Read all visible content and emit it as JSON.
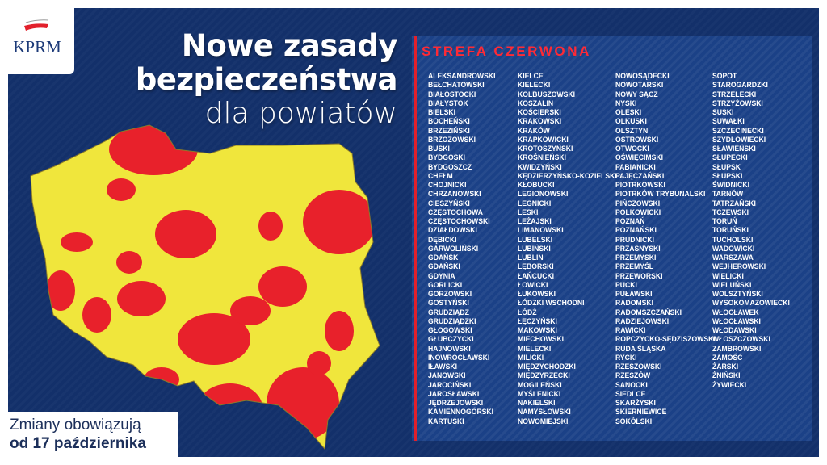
{
  "logo": {
    "text": "KPRM"
  },
  "title": {
    "line1": "Nowe zasady",
    "line2": "bezpieczeństwa",
    "line3": "dla powiatów"
  },
  "footer": {
    "line1": "Zmiany obowiązują",
    "line2": "od 17 października"
  },
  "map": {
    "colors": {
      "red_zone": "#e8212b",
      "yellow_zone": "#f0e63c",
      "border": "#8a7a2a"
    }
  },
  "list": {
    "title": "STREFA CZERWONA",
    "columns": [
      [
        "ALEKSANDROWSKI",
        "BEŁCHATOWSKI",
        "BIAŁOSTOCKI",
        "BIAŁYSTOK",
        "BIELSKI",
        "BOCHEŃSKI",
        "BRZEZIŃSKI",
        "BRZOZOWSKI",
        "BUSKI",
        "BYDGOSKI",
        "BYDGOSZCZ",
        "CHEŁM",
        "CHOJNICKI",
        "CHRZANOWSKI",
        "CIESZYŃSKI",
        "CZĘSTOCHOWA",
        "CZĘSTOCHOWSKI",
        "DZIAŁDOWSKI",
        "DĘBICKI",
        "GARWOLIŃSKI",
        "GDAŃSK",
        "GDAŃSKI",
        "GDYNIA",
        "GORLICKI",
        "GORZOWSKI",
        "GOSTYŃSKI",
        "GRUDZIĄDZ",
        "GRUDZIĄDZKI",
        "GŁOGOWSKI",
        "GŁUBCZYCKI",
        "HAJNOWSKI",
        "INOWROCŁAWSKI",
        "IŁAWSKI",
        "JANOWSKI",
        "JAROCIŃSKI",
        "JAROSŁAWSKI",
        "JĘDRZEJOWSKI",
        "KAMIENNOGÓRSKI",
        "KARTUSKI"
      ],
      [
        "KIELCE",
        "KIELECKI",
        "KOLBUSZOWSKI",
        "KOSZALIN",
        "KOŚCIERSKI",
        "KRAKOWSKI",
        "KRAKÓW",
        "KRAPKOWICKI",
        "KROTOSZYŃSKI",
        "KROŚNIEŃSKI",
        "KWIDZYŃSKI",
        "KĘDZIERZYŃSKO-KOZIELSKI",
        "KŁOBUCKI",
        "LEGIONOWSKI",
        "LEGNICKI",
        "LESKI",
        "LEŻAJSKI",
        "LIMANOWSKI",
        "LUBELSKI",
        "LUBIŃSKI",
        "LUBLIN",
        "LĘBORSKI",
        "ŁAŃCUCKI",
        "ŁOWICKI",
        "ŁUKOWSKI",
        "ŁÓDZKI WSCHODNI",
        "ŁÓDŹ",
        "ŁĘCZYŃSKI",
        "MAKOWSKI",
        "MIECHOWSKI",
        "MIELECKI",
        "MILICKI",
        "MIĘDZYCHODZKI",
        "MIĘDZYRZECKI",
        "MOGILEŃSKI",
        "MYŚLENICKI",
        "NAKIELSKI",
        "NAMYSŁOWSKI",
        "NOWOMIEJSKI"
      ],
      [
        "NOWOSĄDECKI",
        "NOWOTARSKI",
        "NOWY SĄCZ",
        "NYSKI",
        "OLESKI",
        "OLKUSKI",
        "OLSZTYN",
        "OSTROWSKI",
        "OTWOCKI",
        "OŚWIĘCIMSKI",
        "PABIANICKI",
        "PAJĘCZAŃSKI",
        "PIOTRKOWSKI",
        "PIOTRKÓW TRYBUNALSKI",
        "PIŃCZOWSKI",
        "POLKOWICKI",
        "POZNAŃ",
        "POZNAŃSKI",
        "PRUDNICKI",
        "PRZASNYSKI",
        "PRZEMYSKI",
        "PRZEMYŚL",
        "PRZEWORSKI",
        "PUCKI",
        "PUŁAWSKI",
        "RADOMSKI",
        "RADOMSZCZAŃSKI",
        "RADZIEJOWSKI",
        "RAWICKI",
        "ROPCZYCKO-SĘDZISZOWSKI",
        "RUDA ŚLĄSKA",
        "RYCKI",
        "RZESZOWSKI",
        "RZESZÓW",
        "SANOCKI",
        "SIEDLCE",
        "SKARŻYSKI",
        "SKIERNIEWICE",
        "SOKÓLSKI"
      ],
      [
        "SOPOT",
        "STAROGARDZKI",
        "STRZELECKI",
        "STRZYŻOWSKI",
        "SUSKI",
        "SUWAŁKI",
        "SZCZECINECKI",
        "SZYDŁOWIECKI",
        "SŁAWIEŃSKI",
        "SŁUPECKI",
        "SŁUPSK",
        "SŁUPSKI",
        "ŚWIDNICKI",
        "TARNÓW",
        "TATRZAŃSKI",
        "TCZEWSKI",
        "TORUŃ",
        "TORUŃSKI",
        "TUCHOLSKI",
        "WADOWICKI",
        "WARSZAWA",
        "WEJHEROWSKI",
        "WIELICKI",
        "WIELUŃSKI",
        "WOLSZTYŃSKI",
        "WYSOKOMAZOWIECKI",
        "WŁOCŁAWEK",
        "WŁOCŁAWSKI",
        "WŁODAWSKI",
        "WŁOSZCZOWSKI",
        "ZAMBROWSKI",
        "ZAMOŚĆ",
        "ŻARSKI",
        "ŻNIŃSKI",
        "ŻYWIECKI"
      ]
    ]
  }
}
